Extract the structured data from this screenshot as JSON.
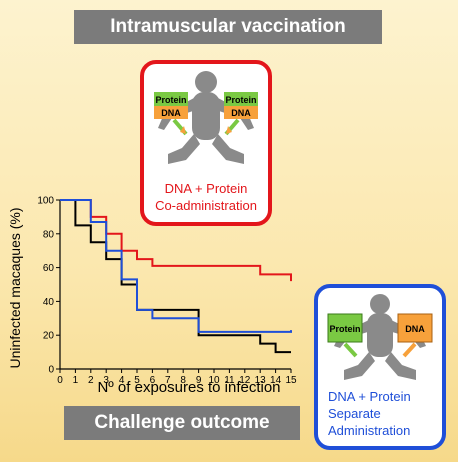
{
  "header": {
    "title": "Intramuscular vaccination"
  },
  "footer": {
    "title": "Challenge outcome"
  },
  "panel_co": {
    "box1": "Protein",
    "box2": "DNA",
    "box3": "Protein",
    "box4": "DNA",
    "caption_line1": "DNA + Protein",
    "caption_line2": "Co-administration",
    "border_color": "#e3161b"
  },
  "panel_sep": {
    "box1": "Protein",
    "box2": "DNA",
    "caption_line1": "DNA + Protein",
    "caption_line2": "Separate",
    "caption_line3": "Administration",
    "border_color": "#1f4fd8"
  },
  "chart_data": {
    "type": "line",
    "step": true,
    "xlabel": "Nº of exposures to infection",
    "ylabel": "Uninfected macaques (%)",
    "xlim": [
      0,
      15
    ],
    "ylim": [
      0,
      100
    ],
    "xticks": [
      0,
      1,
      2,
      3,
      4,
      5,
      6,
      7,
      8,
      9,
      10,
      11,
      12,
      13,
      14,
      15
    ],
    "yticks": [
      0,
      20,
      40,
      60,
      80,
      100
    ],
    "grid": false,
    "series": [
      {
        "color": "#000000",
        "x": [
          0,
          1,
          2,
          3,
          4,
          5,
          7,
          9,
          13,
          14,
          15
        ],
        "y": [
          100,
          85,
          75,
          65,
          50,
          35,
          35,
          20,
          15,
          10,
          10
        ]
      },
      {
        "color": "#e3161b",
        "x": [
          0,
          2,
          3,
          4,
          5,
          6,
          13,
          15
        ],
        "y": [
          100,
          90,
          80,
          70,
          65,
          61,
          56,
          52
        ]
      },
      {
        "color": "#1f4fd8",
        "x": [
          0,
          2,
          3,
          4,
          5,
          6,
          9,
          15
        ],
        "y": [
          100,
          87,
          70,
          53,
          35,
          30,
          22,
          23
        ]
      }
    ]
  }
}
